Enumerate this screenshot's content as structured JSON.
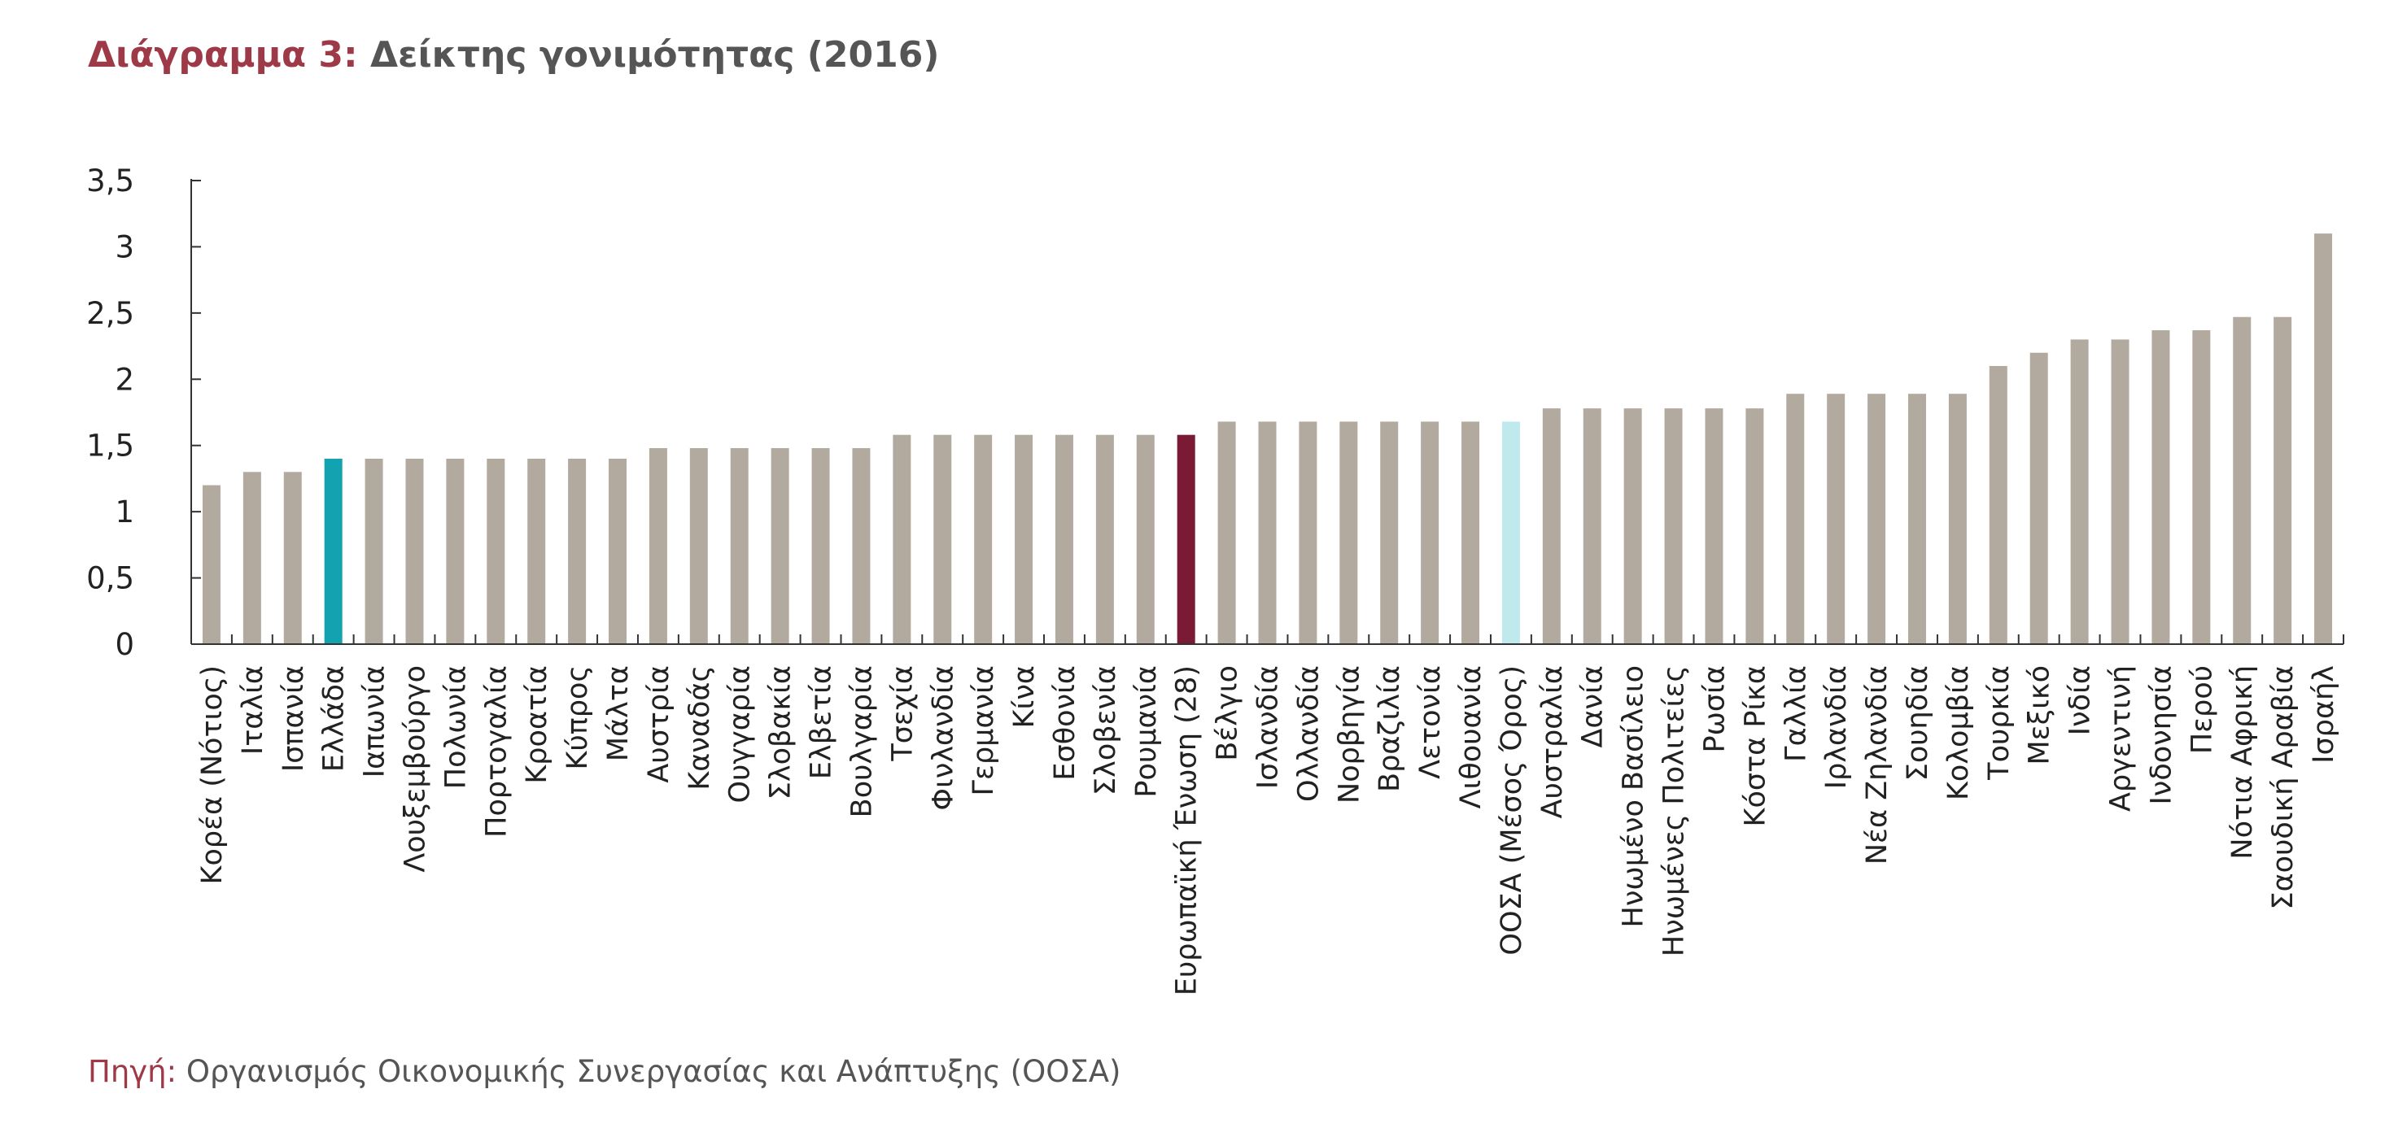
{
  "title": {
    "prefix": "Διάγραμμα 3:",
    "text": "Δείκτης γονιμότητας (2016)"
  },
  "source": {
    "prefix": "Πηγή:",
    "text": "Οργανισμός Οικονομικής Συνεργασίας και Ανάπτυξης (ΟΟΣΑ)"
  },
  "colors": {
    "default": "#b3aa9f",
    "greece": "#12a2b0",
    "eu": "#7b1a35",
    "oecd": "#bfe9ec"
  },
  "chart_data": {
    "type": "bar",
    "title": "Δείκτης γονιμότητας (2016)",
    "xlabel": "",
    "ylabel": "",
    "ylim": [
      0,
      3.5
    ],
    "yticks": [
      {
        "value": 0,
        "label": "0"
      },
      {
        "value": 0.5,
        "label": "0,5"
      },
      {
        "value": 1,
        "label": "1"
      },
      {
        "value": 1.5,
        "label": "1,5"
      },
      {
        "value": 2,
        "label": "2"
      },
      {
        "value": 2.5,
        "label": "2,5"
      },
      {
        "value": 3,
        "label": "3"
      },
      {
        "value": 3.5,
        "label": "3,5"
      }
    ],
    "grid": false,
    "legend": "none",
    "highlights": {
      "Ελλάδα": "greece",
      "Ευρωπαϊκή Ένωση (28)": "eu",
      "ΟΟΣΑ (Μέσος Όρος)": "oecd"
    },
    "categories": [
      "Κορέα (Νότιος)",
      "Ιταλία",
      "Ισπανία",
      "Ελλάδα",
      "Ιαπωνία",
      "Λουξεμβούργο",
      "Πολωνία",
      "Πορτογαλία",
      "Κροατία",
      "Κύπρος",
      "Μάλτα",
      "Αυστρία",
      "Καναδάς",
      "Ουγγαρία",
      "Σλοβακία",
      "Ελβετία",
      "Βουλγαρία",
      "Τσεχία",
      "Φινλανδία",
      "Γερμανία",
      "Κίνα",
      "Εσθονία",
      "Σλοβενία",
      "Ρουμανία",
      "Ευρωπαϊκή Ένωση (28)",
      "Βέλγιο",
      "Ισλανδία",
      "Ολλανδία",
      "Νορβηγία",
      "Βραζιλία",
      "Λετονία",
      "Λιθουανία",
      "ΟΟΣΑ (Μέσος Όρος)",
      "Αυστραλία",
      "Δανία",
      "Ηνωμένο Βασίλειο",
      "Ηνωμένες Πολιτείες",
      "Ρωσία",
      "Κόστα Ρίκα",
      "Γαλλία",
      "Ιρλανδία",
      "Νέα Ζηλανδία",
      "Σουηδία",
      "Κολομβία",
      "Τουρκία",
      "Μεξικό",
      "Ινδία",
      "Αργεντινή",
      "Ινδονησία",
      "Περού",
      "Νότια Αφρική",
      "Σαουδική Αραβία",
      "Ισραήλ"
    ],
    "values": [
      1.2,
      1.3,
      1.3,
      1.4,
      1.4,
      1.4,
      1.4,
      1.4,
      1.4,
      1.4,
      1.4,
      1.48,
      1.48,
      1.48,
      1.48,
      1.48,
      1.48,
      1.58,
      1.58,
      1.58,
      1.58,
      1.58,
      1.58,
      1.58,
      1.58,
      1.68,
      1.68,
      1.68,
      1.68,
      1.68,
      1.68,
      1.68,
      1.68,
      1.78,
      1.78,
      1.78,
      1.78,
      1.78,
      1.78,
      1.89,
      1.89,
      1.89,
      1.89,
      1.89,
      2.1,
      2.2,
      2.3,
      2.3,
      2.37,
      2.37,
      2.47,
      2.47,
      3.1
    ]
  }
}
